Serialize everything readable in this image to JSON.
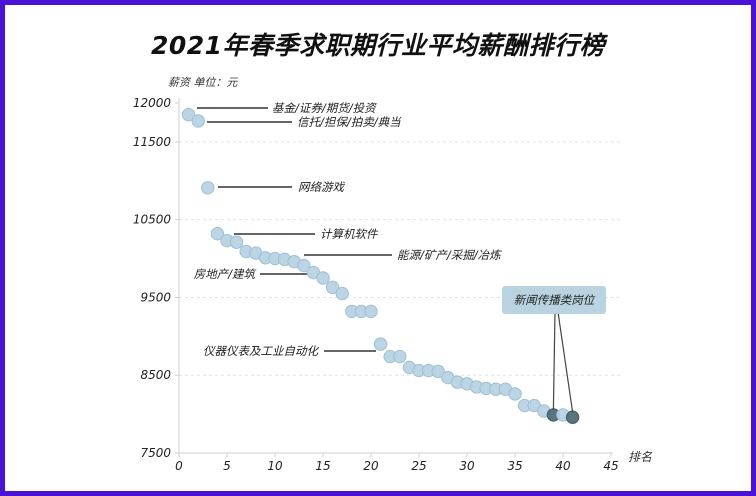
{
  "chart_data": {
    "type": "scatter",
    "title": "2021年春季求职期行业平均薪酬排行榜",
    "ylabel": "薪资  单位：元",
    "xlabel": "排名",
    "xlim": [
      0,
      45
    ],
    "ylim": [
      7500,
      12000
    ],
    "xticks": [
      0,
      5,
      10,
      15,
      20,
      25,
      30,
      35,
      40,
      45
    ],
    "yticks": [
      12000,
      11500,
      10500,
      9500,
      8500,
      7500
    ],
    "grid": "horizontal dashed",
    "x": [
      1,
      2,
      3,
      4,
      5,
      6,
      7,
      8,
      9,
      10,
      11,
      12,
      13,
      14,
      15,
      16,
      17,
      18,
      19,
      20,
      21,
      22,
      23,
      24,
      25,
      26,
      27,
      28,
      29,
      30,
      31,
      32,
      33,
      34,
      35,
      36,
      37,
      38,
      39,
      40,
      41
    ],
    "y": [
      11850,
      11770,
      10910,
      10320,
      10230,
      10210,
      10090,
      10070,
      10010,
      10000,
      9990,
      9960,
      9910,
      9820,
      9750,
      9630,
      9550,
      9320,
      9320,
      9320,
      8900,
      8740,
      8740,
      8600,
      8560,
      8560,
      8550,
      8470,
      8410,
      8390,
      8350,
      8330,
      8320,
      8320,
      8260,
      8110,
      8110,
      8040,
      7990,
      7990,
      7960
    ],
    "highlighted": [
      39,
      41
    ],
    "colors": {
      "point": "#b7d3e3",
      "point_edge": "#9fc0d4",
      "highlight": "#4f6e78",
      "callout_bg": "#b9d3e0",
      "frame": "#4a12d8"
    },
    "annotations": [
      {
        "text": "基金/证券/期货/投资",
        "rank": 1
      },
      {
        "text": "信托/担保/拍卖/典当",
        "rank": 2
      },
      {
        "text": "网络游戏",
        "rank": 3
      },
      {
        "text": "计算机软件",
        "rank": 5
      },
      {
        "text": "能源/矿产/采掘/冶炼",
        "rank": 13
      },
      {
        "text": "房地产/建筑",
        "rank": 14
      },
      {
        "text": "仪器仪表及工业自动化",
        "rank": 21
      },
      {
        "text": "新闻传播类岗位",
        "rank": [
          39,
          41
        ]
      }
    ]
  }
}
